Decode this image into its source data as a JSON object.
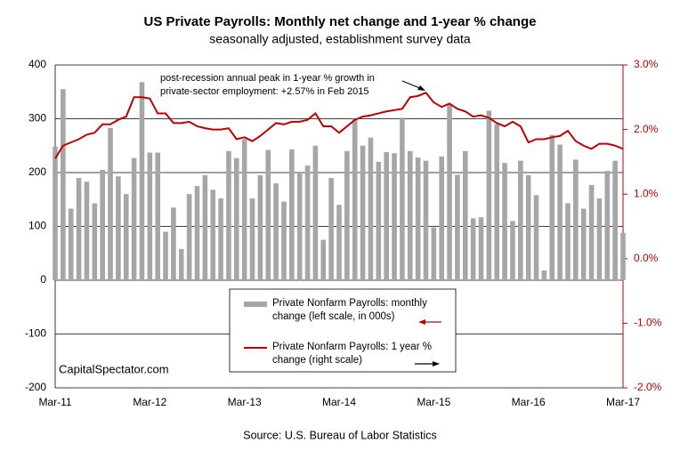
{
  "chart_data": {
    "type": "bar",
    "title": "US Private Payrolls: Monthly net change and 1-year % change",
    "subtitle": "seasonally adjusted, establishment survey data",
    "annotation": [
      "post-recession annual peak in 1-year % growth in",
      "private-sector employment:  +2.57% in Feb 2015"
    ],
    "watermark": "CapitalSpectator.com",
    "source": "Source: U.S. Bureau of Labor Statistics",
    "categories": [
      "Mar-11",
      null,
      null,
      null,
      null,
      null,
      null,
      null,
      null,
      null,
      null,
      null,
      "Mar-12",
      null,
      null,
      null,
      null,
      null,
      null,
      null,
      null,
      null,
      null,
      null,
      "Mar-13",
      null,
      null,
      null,
      null,
      null,
      null,
      null,
      null,
      null,
      null,
      null,
      "Mar-14",
      null,
      null,
      null,
      null,
      null,
      null,
      null,
      null,
      null,
      null,
      null,
      "Mar-15",
      null,
      null,
      null,
      null,
      null,
      null,
      null,
      null,
      null,
      null,
      null,
      "Mar-16",
      null,
      null,
      null,
      null,
      null,
      null,
      null,
      null,
      null,
      null,
      null,
      "Mar-17"
    ],
    "series": [
      {
        "name": "Private Nonfarm Payrolls: monthly change (left scale, in 000s)",
        "type": "bar",
        "color": "#a6a6a6",
        "values": [
          248,
          355,
          133,
          190,
          183,
          143,
          205,
          283,
          193,
          160,
          227,
          368,
          237,
          237,
          90,
          135,
          58,
          160,
          175,
          195,
          168,
          152,
          240,
          227,
          262,
          152,
          195,
          242,
          180,
          146,
          243,
          200,
          213,
          250,
          75,
          190,
          140,
          240,
          300,
          250,
          265,
          220,
          238,
          236,
          302,
          240,
          228,
          222,
          98,
          230,
          327,
          196,
          240,
          115,
          117,
          315,
          290,
          218,
          110,
          222,
          195,
          158,
          18,
          270,
          252,
          143,
          224,
          133,
          177,
          152,
          203,
          222,
          88
        ]
      },
      {
        "name": "Private Nonfarm Payrolls:  1 year % change (right scale)",
        "type": "line",
        "color": "#c00000",
        "axis": "y2",
        "values": [
          1.55,
          1.75,
          1.8,
          1.85,
          1.92,
          1.95,
          2.08,
          2.08,
          2.15,
          2.2,
          2.5,
          2.5,
          2.48,
          2.25,
          2.25,
          2.1,
          2.1,
          2.12,
          2.05,
          2.02,
          2.0,
          2.0,
          2.02,
          1.85,
          1.88,
          1.82,
          1.9,
          2.0,
          2.1,
          2.08,
          2.12,
          2.12,
          2.15,
          2.25,
          2.05,
          2.05,
          1.95,
          2.05,
          2.15,
          2.2,
          2.22,
          2.25,
          2.28,
          2.3,
          2.32,
          2.5,
          2.52,
          2.57,
          2.42,
          2.35,
          2.4,
          2.32,
          2.28,
          2.2,
          2.22,
          2.18,
          2.1,
          2.05,
          2.12,
          2.05,
          1.8,
          1.85,
          1.85,
          1.88,
          1.9,
          1.98,
          1.82,
          1.75,
          1.7,
          1.78,
          1.78,
          1.75,
          1.7
        ]
      }
    ],
    "ylim": [
      -200,
      400
    ],
    "yticks": [
      -200,
      -100,
      0,
      100,
      200,
      300,
      400
    ],
    "y2lim": [
      -2,
      3
    ],
    "y2ticks": [
      {
        "value": -2,
        "label": "-2.0%"
      },
      {
        "value": -1,
        "label": "-1.0%"
      },
      {
        "value": 0,
        "label": "0.0%"
      },
      {
        "value": 1,
        "label": "1.0%"
      },
      {
        "value": 2,
        "label": "2.0%"
      },
      {
        "value": 3,
        "label": "3.0%"
      }
    ],
    "y2color": "#c00000",
    "grid": true
  }
}
